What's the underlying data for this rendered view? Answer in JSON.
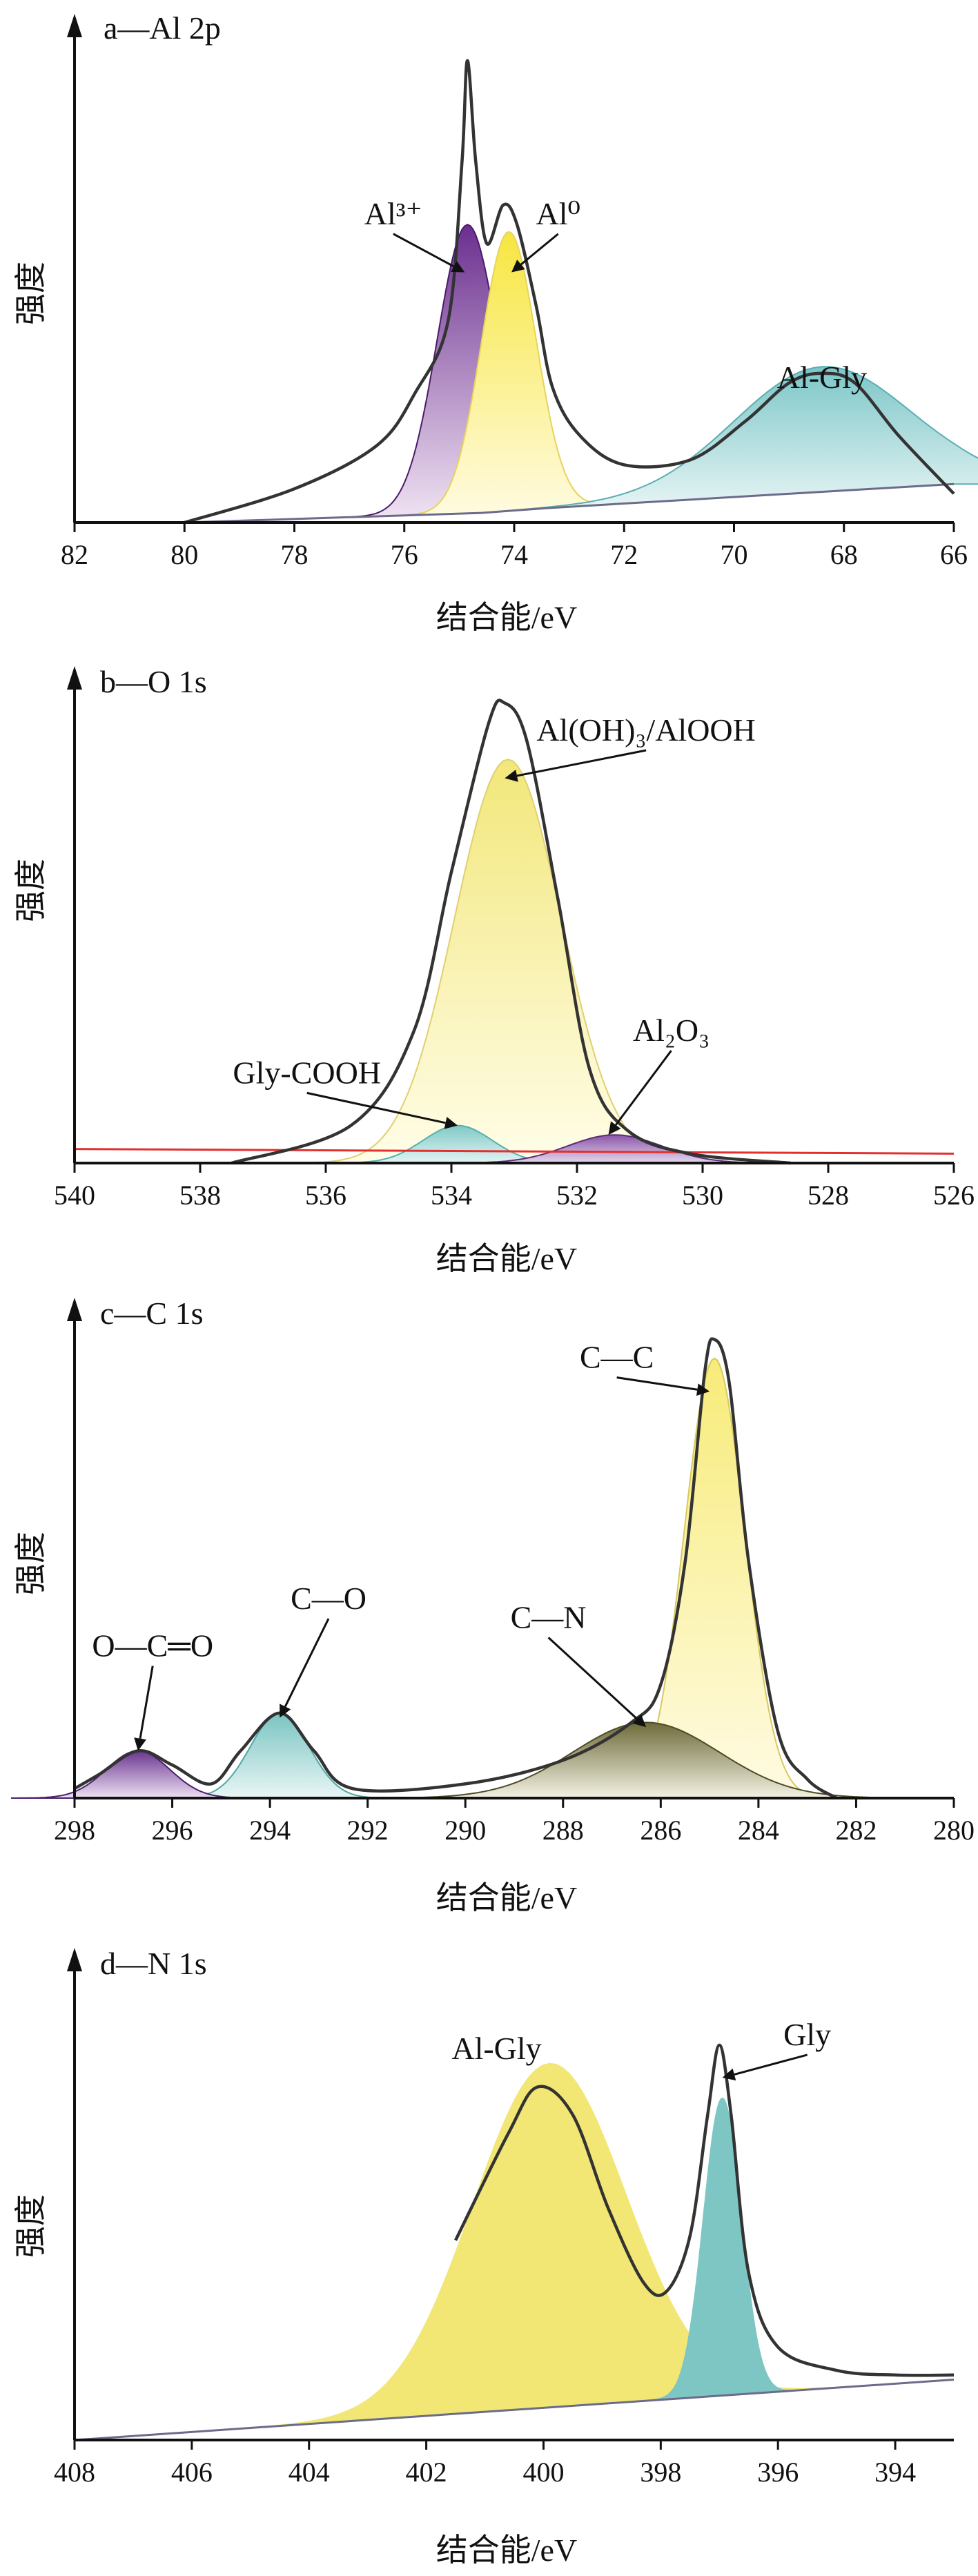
{
  "chart_data": [
    {
      "type": "line",
      "title": "a—Al 2p",
      "xlabel": "结合能/eV",
      "ylabel": "强度",
      "xlim": [
        82,
        66
      ],
      "xticks": [
        82,
        80,
        78,
        76,
        74,
        72,
        70,
        68,
        66
      ],
      "x_reversed": true,
      "grid": false,
      "baseline": [
        [
          80,
          0.0
        ],
        [
          74.6,
          0.02
        ],
        [
          73.4,
          0.03
        ],
        [
          66,
          0.08
        ]
      ],
      "components": [
        {
          "name": "Al³⁺",
          "center": 74.85,
          "height": 0.6,
          "width": 0.55,
          "fill": "#6b2f8f",
          "fill_end": "#efe2f2",
          "line": "#4a1a6a"
        },
        {
          "name": "Al⁰",
          "center": 74.1,
          "height": 0.58,
          "width": 0.5,
          "fill": "#f7e640",
          "fill_end": "#fffbe0",
          "line": "#e8d35a"
        },
        {
          "name": "Al-Gly",
          "center": 68.4,
          "height": 0.26,
          "width": 1.6,
          "fill": "#7cc6c8",
          "fill_end": "#eaf6f6",
          "line": "#5aaeb2"
        }
      ],
      "envelope": [
        [
          80.0,
          0.0
        ],
        [
          78.0,
          0.07
        ],
        [
          76.5,
          0.16
        ],
        [
          75.8,
          0.27
        ],
        [
          75.2,
          0.42
        ],
        [
          74.95,
          0.75
        ],
        [
          74.85,
          0.96
        ],
        [
          74.7,
          0.75
        ],
        [
          74.5,
          0.58
        ],
        [
          74.2,
          0.66
        ],
        [
          73.95,
          0.62
        ],
        [
          73.6,
          0.45
        ],
        [
          73.3,
          0.28
        ],
        [
          72.8,
          0.18
        ],
        [
          72.0,
          0.12
        ],
        [
          70.8,
          0.13
        ],
        [
          69.8,
          0.21
        ],
        [
          69.0,
          0.29
        ],
        [
          68.4,
          0.31
        ],
        [
          67.8,
          0.29
        ],
        [
          67.0,
          0.18
        ],
        [
          66.0,
          0.06
        ]
      ],
      "annotations": [
        {
          "text": "Al³⁺",
          "x": 76.2,
          "y": 0.62,
          "arrow_to": [
            74.9,
            0.52
          ]
        },
        {
          "text": "Al⁰",
          "x": 73.2,
          "y": 0.62,
          "arrow_to": [
            74.05,
            0.52
          ]
        },
        {
          "text": "Al-Gly",
          "x": 68.4,
          "y": 0.28,
          "arrow_to": null
        }
      ]
    },
    {
      "type": "line",
      "title": "b—O 1s",
      "xlabel": "结合能/eV",
      "ylabel": "强度",
      "xlim": [
        540,
        526
      ],
      "xticks": [
        540,
        538,
        536,
        534,
        532,
        530,
        528,
        526
      ],
      "x_reversed": true,
      "grid": false,
      "baseline": [
        [
          540,
          0.0
        ],
        [
          526,
          0.0
        ]
      ],
      "components": [
        {
          "name": "Al(OH)₃/AlOOH",
          "center": 533.1,
          "height": 0.86,
          "width": 0.85,
          "fill": "#f2e77a",
          "fill_end": "#fffde8",
          "line": "#e0d070"
        },
        {
          "name": "Gly-COOH",
          "center": 533.9,
          "height": 0.08,
          "width": 0.55,
          "fill": "#7fc9c6",
          "fill_end": "#e3f4f3",
          "line": "#56b0ad"
        },
        {
          "name": "Al₂O₃",
          "center": 531.4,
          "height": 0.06,
          "width": 0.75,
          "fill": "#8a55a8",
          "fill_end": "#e4d8ec",
          "line": "#5b2d7a"
        }
      ],
      "reference_line": {
        "color": "#e23030",
        "from": [
          540,
          0.03
        ],
        "to": [
          526,
          0.02
        ]
      },
      "envelope": [
        [
          537.5,
          0.0
        ],
        [
          535.6,
          0.08
        ],
        [
          534.6,
          0.28
        ],
        [
          534.0,
          0.62
        ],
        [
          533.4,
          0.94
        ],
        [
          533.15,
          0.98
        ],
        [
          532.8,
          0.9
        ],
        [
          532.3,
          0.56
        ],
        [
          531.8,
          0.2
        ],
        [
          531.2,
          0.07
        ],
        [
          530.2,
          0.02
        ],
        [
          528.6,
          0.0
        ]
      ],
      "annotations": [
        {
          "text": "Al(OH)₃/AlOOH",
          "x": 530.9,
          "y": 0.9,
          "arrow_to": [
            533.15,
            0.82
          ]
        },
        {
          "text": "Gly-COOH",
          "x": 536.3,
          "y": 0.17,
          "arrow_to": [
            533.9,
            0.08
          ]
        },
        {
          "text": "Al₂O₃",
          "x": 530.5,
          "y": 0.26,
          "arrow_to": [
            531.5,
            0.06
          ]
        }
      ]
    },
    {
      "type": "line",
      "title": "c—C 1s",
      "xlabel": "结合能/eV",
      "ylabel": "强度",
      "xlim": [
        298,
        280
      ],
      "xticks": [
        298,
        296,
        294,
        292,
        290,
        288,
        286,
        284,
        282,
        280
      ],
      "x_reversed": true,
      "grid": false,
      "baseline": [
        [
          298,
          0.0
        ],
        [
          282,
          0.0
        ]
      ],
      "components": [
        {
          "name": "C—C",
          "center": 284.9,
          "height": 0.93,
          "width": 0.62,
          "fill": "#f7eb78",
          "fill_end": "#fffbe3",
          "line": "#d8c860"
        },
        {
          "name": "C—N",
          "center": 286.3,
          "height": 0.16,
          "width": 1.5,
          "fill": "#6e6b3a",
          "fill_end": "#f3f2e3",
          "line": "#4d4a24"
        },
        {
          "name": "C—O",
          "center": 293.8,
          "height": 0.18,
          "width": 0.6,
          "fill": "#79c4c2",
          "fill_end": "#e9f6f5",
          "line": "#4fa7a5"
        },
        {
          "name": "O—C═O",
          "center": 296.7,
          "height": 0.1,
          "width": 0.65,
          "fill": "#6b3590",
          "fill_end": "#ece0f2",
          "line": "#48206a"
        }
      ],
      "envelope": [
        [
          298.0,
          0.02
        ],
        [
          297.5,
          0.05
        ],
        [
          296.7,
          0.1
        ],
        [
          296.0,
          0.07
        ],
        [
          295.2,
          0.03
        ],
        [
          294.6,
          0.1
        ],
        [
          293.8,
          0.18
        ],
        [
          293.1,
          0.1
        ],
        [
          292.3,
          0.02
        ],
        [
          290.0,
          0.03
        ],
        [
          288.0,
          0.08
        ],
        [
          286.6,
          0.16
        ],
        [
          286.0,
          0.24
        ],
        [
          285.5,
          0.5
        ],
        [
          285.1,
          0.9
        ],
        [
          284.9,
          0.97
        ],
        [
          284.6,
          0.88
        ],
        [
          284.2,
          0.5
        ],
        [
          283.6,
          0.14
        ],
        [
          283.0,
          0.04
        ],
        [
          282.4,
          0.0
        ]
      ],
      "annotations": [
        {
          "text": "C—C",
          "x": 286.9,
          "y": 0.91,
          "arrow_to": [
            285.0,
            0.86
          ]
        },
        {
          "text": "C—N",
          "x": 288.3,
          "y": 0.36,
          "arrow_to": [
            286.3,
            0.15
          ]
        },
        {
          "text": "C—O",
          "x": 292.8,
          "y": 0.4,
          "arrow_to": [
            293.8,
            0.17
          ]
        },
        {
          "text": "O—C═O",
          "x": 296.4,
          "y": 0.3,
          "arrow_to": [
            296.7,
            0.1
          ]
        }
      ]
    },
    {
      "type": "line",
      "title": "d—N 1s",
      "xlabel": "结合能/eV",
      "ylabel": "强度",
      "xlim": [
        408,
        393
      ],
      "xticks": [
        408,
        406,
        404,
        402,
        400,
        398,
        396,
        394
      ],
      "x_reversed": true,
      "grid": false,
      "baseline": [
        [
          408,
          0.0
        ],
        [
          393,
          0.13
        ]
      ],
      "components": [
        {
          "name": "Al-Gly",
          "center": 399.9,
          "height": 0.74,
          "width": 1.3,
          "fill": "#f2e774",
          "fill_end": "#f2e774",
          "line": "#f2e774"
        },
        {
          "name": "Gly",
          "center": 396.95,
          "height": 0.64,
          "width": 0.32,
          "fill": "#7ec6c4",
          "fill_end": "#7ec6c4",
          "line": "#7ec6c4"
        }
      ],
      "envelope": [
        [
          401.5,
          0.43
        ],
        [
          400.6,
          0.66
        ],
        [
          400.1,
          0.76
        ],
        [
          399.5,
          0.7
        ],
        [
          398.9,
          0.5
        ],
        [
          398.3,
          0.34
        ],
        [
          397.9,
          0.32
        ],
        [
          397.5,
          0.44
        ],
        [
          397.2,
          0.7
        ],
        [
          397.0,
          0.85
        ],
        [
          396.8,
          0.7
        ],
        [
          396.5,
          0.36
        ],
        [
          396.0,
          0.2
        ],
        [
          395.0,
          0.15
        ],
        [
          394.0,
          0.14
        ],
        [
          393.0,
          0.14
        ]
      ],
      "annotations": [
        {
          "text": "Al-Gly",
          "x": 400.8,
          "y": 0.82,
          "arrow_to": null
        },
        {
          "text": "Gly",
          "x": 395.5,
          "y": 0.85,
          "arrow_to": [
            396.95,
            0.78
          ]
        }
      ]
    }
  ]
}
